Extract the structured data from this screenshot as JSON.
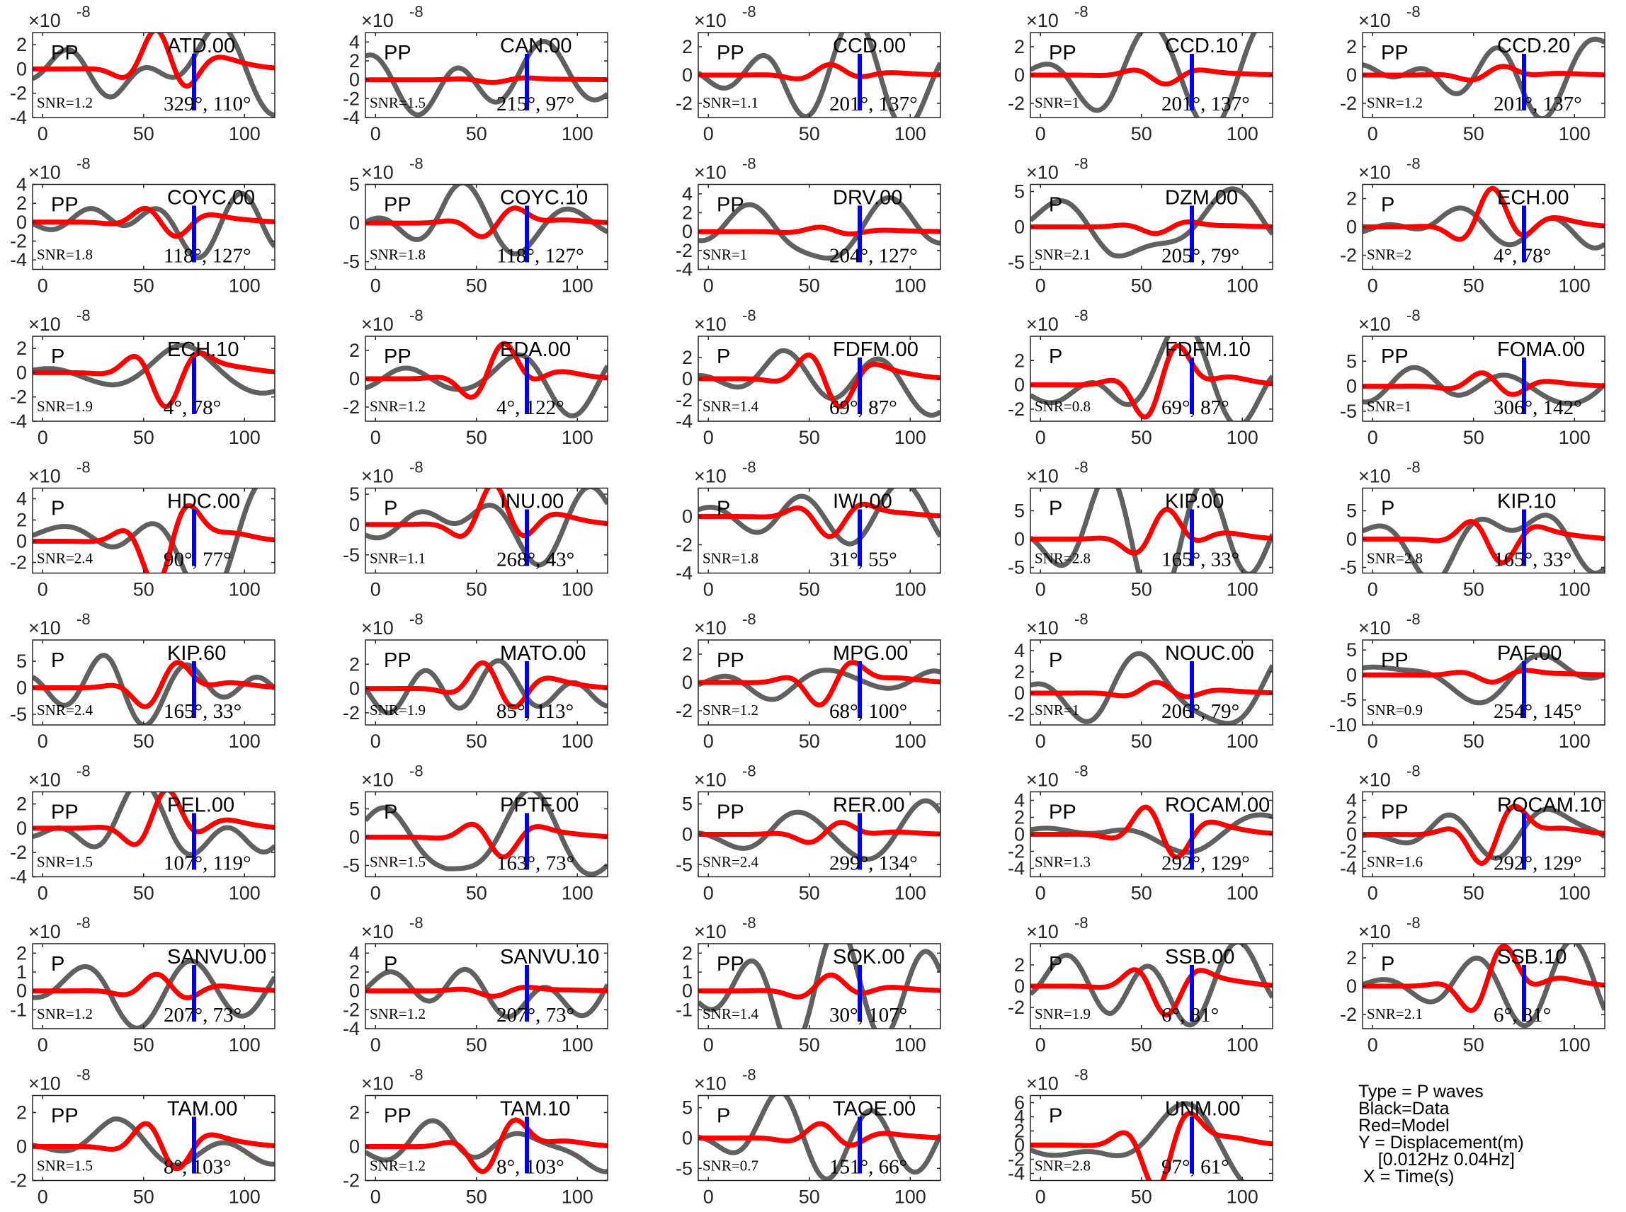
{
  "chart_data": {
    "type": "line",
    "layout": "small-multiples",
    "xlim": [
      -5,
      115
    ],
    "xticks": [
      0,
      50,
      100
    ],
    "exponent_label": "×10",
    "exponent_power": "-8",
    "series_colors": {
      "data": "#606060",
      "model": "#ff0000",
      "marker": "#0000ee"
    },
    "legend": {
      "lines": [
        "Type = P waves",
        "Black=Data",
        "Red=Model",
        "Y = Displacement(m)",
        "    [0.012Hz 0.04Hz]",
        " X = Time(s)"
      ]
    },
    "panels": [
      {
        "station": "ATD.00",
        "phase": "PP",
        "snr": "SNR=1.2",
        "angles": "329°, 110°",
        "ylim": [
          -4,
          3
        ],
        "yticks": [
          -4,
          -2,
          0,
          2
        ],
        "data_amp": 3.0,
        "model_amp": 3.3,
        "seed": 1
      },
      {
        "station": "CAN.00",
        "phase": "PP",
        "snr": "SNR=1.5",
        "angles": "215°, 97°",
        "ylim": [
          -4,
          5
        ],
        "yticks": [
          -4,
          -2,
          0,
          2,
          4
        ],
        "data_amp": 3.5,
        "model_amp": 0.3,
        "seed": 2
      },
      {
        "station": "CCD.00",
        "phase": "PP",
        "snr": "SNR=1.1",
        "angles": "201°, 137°",
        "ylim": [
          -3,
          3
        ],
        "yticks": [
          -2,
          0,
          2
        ],
        "data_amp": 2.8,
        "model_amp": 0.7,
        "seed": 3
      },
      {
        "station": "CCD.10",
        "phase": "PP",
        "snr": "SNR=1",
        "angles": "201°, 137°",
        "ylim": [
          -3,
          3
        ],
        "yticks": [
          -2,
          0,
          2
        ],
        "data_amp": 2.8,
        "model_amp": 0.7,
        "seed": 4
      },
      {
        "station": "CCD.20",
        "phase": "PP",
        "snr": "SNR=1.2",
        "angles": "201°, 137°",
        "ylim": [
          -3,
          3
        ],
        "yticks": [
          -2,
          0,
          2
        ],
        "data_amp": 2.6,
        "model_amp": 0.6,
        "seed": 5
      },
      {
        "station": "COYC.00",
        "phase": "PP",
        "snr": "SNR=1.8",
        "angles": "118°, 127°",
        "ylim": [
          -5,
          4
        ],
        "yticks": [
          -4,
          -2,
          0,
          2,
          4
        ],
        "data_amp": 4.0,
        "model_amp": 2.0,
        "seed": 6
      },
      {
        "station": "COYC.10",
        "phase": "PP",
        "snr": "SNR=1.8",
        "angles": "118°, 127°",
        "ylim": [
          -6,
          5
        ],
        "yticks": [
          -5,
          0,
          5
        ],
        "data_amp": 5.0,
        "model_amp": 2.2,
        "seed": 7
      },
      {
        "station": "DRV.00",
        "phase": "PP",
        "snr": "SNR=1",
        "angles": "204°, 127°",
        "ylim": [
          -4,
          5
        ],
        "yticks": [
          -4,
          -2,
          0,
          2,
          4
        ],
        "data_amp": 4.2,
        "model_amp": 0.5,
        "seed": 8
      },
      {
        "station": "DZM.00",
        "phase": "P",
        "snr": "SNR=2.1",
        "angles": "205°, 79°",
        "ylim": [
          -6,
          6
        ],
        "yticks": [
          -5,
          0,
          5
        ],
        "data_amp": 5.0,
        "model_amp": 1.0,
        "seed": 9
      },
      {
        "station": "ECH.00",
        "phase": "P",
        "snr": "SNR=2",
        "angles": "4°, 78°",
        "ylim": [
          -3,
          3
        ],
        "yticks": [
          -2,
          0,
          2
        ],
        "data_amp": 2.8,
        "model_amp": 2.6,
        "seed": 10
      },
      {
        "station": "ECH.10",
        "phase": "P",
        "snr": "SNR=1.9",
        "angles": "4°, 78°",
        "ylim": [
          -4,
          3
        ],
        "yticks": [
          -4,
          -2,
          0,
          2
        ],
        "data_amp": 3.2,
        "model_amp": 3.0,
        "seed": 11
      },
      {
        "station": "EDA.00",
        "phase": "PP",
        "snr": "SNR=1.2",
        "angles": "4°, 122°",
        "ylim": [
          -3,
          3
        ],
        "yticks": [
          -2,
          0,
          2
        ],
        "data_amp": 2.6,
        "model_amp": 2.4,
        "seed": 12
      },
      {
        "station": "FDFM.00",
        "phase": "P",
        "snr": "SNR=1.4",
        "angles": "69°, 87°",
        "ylim": [
          -4,
          4
        ],
        "yticks": [
          -4,
          -2,
          0,
          2
        ],
        "data_amp": 3.5,
        "model_amp": 3.3,
        "seed": 13
      },
      {
        "station": "FDFM.10",
        "phase": "P",
        "snr": "SNR=0.8",
        "angles": "69°, 87°",
        "ylim": [
          -3,
          4
        ],
        "yticks": [
          -2,
          0,
          2
        ],
        "data_amp": 3.3,
        "model_amp": 3.5,
        "seed": 14
      },
      {
        "station": "FOMA.00",
        "phase": "PP",
        "snr": "SNR=1",
        "angles": "306°, 142°",
        "ylim": [
          -7,
          10
        ],
        "yticks": [
          -5,
          0,
          5
        ],
        "data_amp": 8.0,
        "model_amp": 3.0,
        "seed": 15
      },
      {
        "station": "HDC.00",
        "phase": "P",
        "snr": "SNR=2.4",
        "angles": "90°, 77°",
        "ylim": [
          -3,
          5
        ],
        "yticks": [
          -2,
          0,
          2,
          4
        ],
        "data_amp": 4.5,
        "model_amp": 4.5,
        "seed": 16
      },
      {
        "station": "INU.00",
        "phase": "P",
        "snr": "SNR=1.1",
        "angles": "268°, 43°",
        "ylim": [
          -8,
          6
        ],
        "yticks": [
          -5,
          0,
          5
        ],
        "data_amp": 5.5,
        "model_amp": 6.5,
        "seed": 17
      },
      {
        "station": "IWI.00",
        "phase": "P",
        "snr": "SNR=1.8",
        "angles": "31°, 55°",
        "ylim": [
          -4,
          2
        ],
        "yticks": [
          -4,
          -2,
          0
        ],
        "data_amp": 2.5,
        "model_amp": 1.5,
        "seed": 18
      },
      {
        "station": "KIP.00",
        "phase": "P",
        "snr": "SNR=2.8",
        "angles": "165°, 33°",
        "ylim": [
          -6,
          9
        ],
        "yticks": [
          -5,
          0,
          5
        ],
        "data_amp": 8.0,
        "model_amp": 5.0,
        "seed": 19
      },
      {
        "station": "KIP.10",
        "phase": "P",
        "snr": "SNR=2.8",
        "angles": "165°, 33°",
        "ylim": [
          -6,
          9
        ],
        "yticks": [
          -5,
          0,
          5
        ],
        "data_amp": 8.0,
        "model_amp": 5.0,
        "seed": 20
      },
      {
        "station": "KIP.60",
        "phase": "P",
        "snr": "SNR=2.4",
        "angles": "165°, 33°",
        "ylim": [
          -7,
          9
        ],
        "yticks": [
          -5,
          0,
          5
        ],
        "data_amp": 8.0,
        "model_amp": 5.0,
        "seed": 21
      },
      {
        "station": "MATO.00",
        "phase": "PP",
        "snr": "SNR=1.9",
        "angles": "85°, 113°",
        "ylim": [
          -3,
          4
        ],
        "yticks": [
          -2,
          0,
          2
        ],
        "data_amp": 3.2,
        "model_amp": 2.5,
        "seed": 22
      },
      {
        "station": "MPG.00",
        "phase": "PP",
        "snr": "SNR=1.2",
        "angles": "68°, 100°",
        "ylim": [
          -3,
          3
        ],
        "yticks": [
          -2,
          0,
          2
        ],
        "data_amp": 2.8,
        "model_amp": 1.8,
        "seed": 23
      },
      {
        "station": "NOUC.00",
        "phase": "P",
        "snr": "SNR=1",
        "angles": "206°, 79°",
        "ylim": [
          -3,
          5
        ],
        "yticks": [
          -2,
          0,
          2,
          4
        ],
        "data_amp": 4.0,
        "model_amp": 1.0,
        "seed": 24
      },
      {
        "station": "PAF.00",
        "phase": "PP",
        "snr": "SNR=0.9",
        "angles": "254°, 145°",
        "ylim": [
          -10,
          7
        ],
        "yticks": [
          -10,
          -5,
          0,
          5
        ],
        "data_amp": 5.5,
        "model_amp": 1.5,
        "seed": 25
      },
      {
        "station": "PEL.00",
        "phase": "PP",
        "snr": "SNR=1.5",
        "angles": "107°, 119°",
        "ylim": [
          -4,
          3
        ],
        "yticks": [
          -4,
          -2,
          0,
          2
        ],
        "data_amp": 3.2,
        "model_amp": 3.0,
        "seed": 26
      },
      {
        "station": "PPTF.00",
        "phase": "P",
        "snr": "SNR=1.5",
        "angles": "163°, 73°",
        "ylim": [
          -7,
          8
        ],
        "yticks": [
          -5,
          0,
          5
        ],
        "data_amp": 7.0,
        "model_amp": 4.0,
        "seed": 27
      },
      {
        "station": "RER.00",
        "phase": "PP",
        "snr": "SNR=2.4",
        "angles": "299°, 134°",
        "ylim": [
          -7,
          7
        ],
        "yticks": [
          -5,
          0,
          5
        ],
        "data_amp": 6.5,
        "model_amp": 2.0,
        "seed": 28
      },
      {
        "station": "ROCAM.00",
        "phase": "PP",
        "snr": "SNR=1.3",
        "angles": "292°, 129°",
        "ylim": [
          -5,
          5
        ],
        "yticks": [
          -4,
          -2,
          0,
          2,
          4
        ],
        "data_amp": 4.0,
        "model_amp": 4.0,
        "seed": 29
      },
      {
        "station": "ROCAM.10",
        "phase": "PP",
        "snr": "SNR=1.6",
        "angles": "292°, 129°",
        "ylim": [
          -5,
          5
        ],
        "yticks": [
          -4,
          -2,
          0,
          2,
          4
        ],
        "data_amp": 4.0,
        "model_amp": 4.0,
        "seed": 30
      },
      {
        "station": "SANVU.00",
        "phase": "P",
        "snr": "SNR=1.2",
        "angles": "207°, 73°",
        "ylim": [
          -2,
          2.5
        ],
        "yticks": [
          -1,
          0,
          1,
          2
        ],
        "data_amp": 1.6,
        "model_amp": 0.9,
        "seed": 31
      },
      {
        "station": "SANVU.10",
        "phase": "P",
        "snr": "SNR=1.2",
        "angles": "207°, 73°",
        "ylim": [
          -4,
          5
        ],
        "yticks": [
          -4,
          -2,
          0,
          2,
          4
        ],
        "data_amp": 4.5,
        "model_amp": 0.6,
        "seed": 32
      },
      {
        "station": "SOK.00",
        "phase": "PP",
        "snr": "SNR=1.4",
        "angles": "30°, 107°",
        "ylim": [
          -2,
          2.5
        ],
        "yticks": [
          -1,
          0,
          1,
          2
        ],
        "data_amp": 2.0,
        "model_amp": 0.8,
        "seed": 33
      },
      {
        "station": "SSB.00",
        "phase": "P",
        "snr": "SNR=1.9",
        "angles": "6°, 81°",
        "ylim": [
          -4,
          4
        ],
        "yticks": [
          -2,
          0,
          2
        ],
        "data_amp": 3.0,
        "model_amp": 3.0,
        "seed": 34
      },
      {
        "station": "SSB.10",
        "phase": "P",
        "snr": "SNR=2.1",
        "angles": "6°, 81°",
        "ylim": [
          -3,
          3
        ],
        "yticks": [
          -2,
          0,
          2
        ],
        "data_amp": 2.8,
        "model_amp": 2.8,
        "seed": 35
      },
      {
        "station": "TAM.00",
        "phase": "PP",
        "snr": "SNR=1.5",
        "angles": "8°, 103°",
        "ylim": [
          -2,
          3
        ],
        "yticks": [
          -2,
          0,
          2
        ],
        "data_amp": 2.0,
        "model_amp": 1.8,
        "seed": 36
      },
      {
        "station": "TAM.10",
        "phase": "PP",
        "snr": "SNR=1.2",
        "angles": "8°, 103°",
        "ylim": [
          -2,
          3
        ],
        "yticks": [
          -2,
          0,
          2
        ],
        "data_amp": 2.0,
        "model_amp": 1.8,
        "seed": 37
      },
      {
        "station": "TAOE.00",
        "phase": "P",
        "snr": "SNR=0.7",
        "angles": "151°, 66°",
        "ylim": [
          -7,
          7
        ],
        "yticks": [
          -5,
          0,
          5
        ],
        "data_amp": 6.0,
        "model_amp": 2.5,
        "seed": 38
      },
      {
        "station": "UNM.00",
        "phase": "P",
        "snr": "SNR=2.8",
        "angles": "97°, 61°",
        "ylim": [
          -5,
          7
        ],
        "yticks": [
          -4,
          -2,
          0,
          2,
          4,
          6
        ],
        "data_amp": 5.5,
        "model_amp": 6.5,
        "seed": 39
      }
    ]
  }
}
